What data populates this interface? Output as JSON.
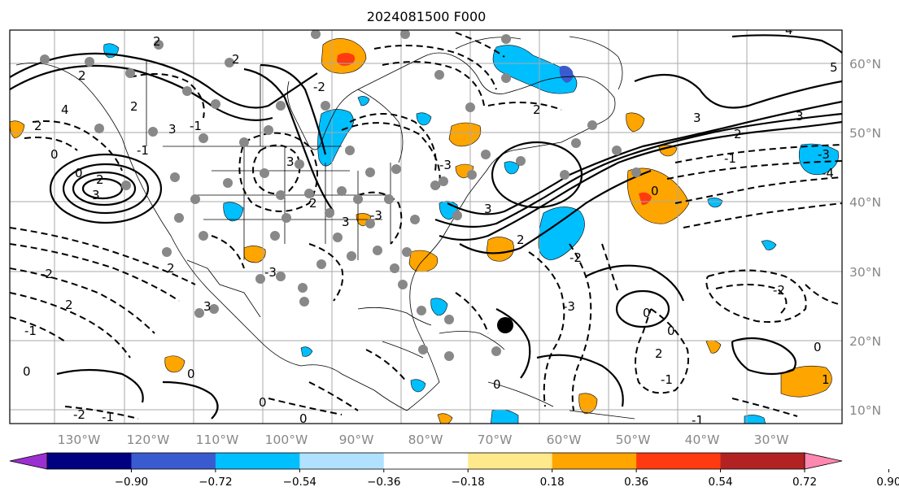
{
  "title": "2024081500 F000",
  "longitude_labels": [
    "130°W",
    "120°W",
    "110°W",
    "100°W",
    "90°W",
    "80°W",
    "70°W",
    "60°W",
    "50°W",
    "40°W",
    "30°W"
  ],
  "latitude_labels": [
    "60°N",
    "50°N",
    "40°N",
    "30°N",
    "20°N",
    "10°N"
  ],
  "colorbar": {
    "tick_labels": [
      "−0.90",
      "−0.72",
      "−0.54",
      "−0.36",
      "−0.18",
      "0.18",
      "0.36",
      "0.54",
      "0.72",
      "0.90"
    ],
    "colors": [
      "#9b30d0",
      "#000080",
      "#3a5bd0",
      "#00bfff",
      "#b0e2ff",
      "#ffffff",
      "#ffe98a",
      "#ffa500",
      "#ff3a10",
      "#b22222",
      "#ff88b0"
    ]
  },
  "contour_labels": [
    "0",
    "1",
    "2",
    "3",
    "-1",
    "-2",
    "-3",
    "4",
    "-4",
    "5"
  ],
  "station_marker_color": "#888888",
  "storm_marker_color": "#000000"
}
